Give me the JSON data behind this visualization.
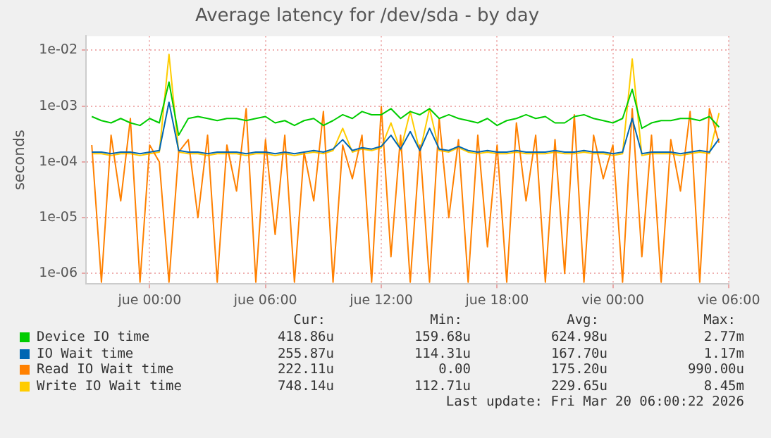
{
  "chart_data": {
    "type": "line",
    "title": "Average latency for /dev/sda - by day",
    "ylabel": "seconds",
    "x": [
      "2026-03-18T21:00",
      "2026-03-18T21:30",
      "2026-03-18T22:00",
      "2026-03-18T22:30",
      "2026-03-18T23:00",
      "2026-03-18T23:30",
      "2026-03-19T00:00",
      "2026-03-19T00:30",
      "2026-03-19T01:00",
      "2026-03-19T01:30",
      "2026-03-19T02:00",
      "2026-03-19T02:30",
      "2026-03-19T03:00",
      "2026-03-19T03:30",
      "2026-03-19T04:00",
      "2026-03-19T04:30",
      "2026-03-19T05:00",
      "2026-03-19T05:30",
      "2026-03-19T06:00",
      "2026-03-19T06:30",
      "2026-03-19T07:00",
      "2026-03-19T07:30",
      "2026-03-19T08:00",
      "2026-03-19T08:30",
      "2026-03-19T09:00",
      "2026-03-19T09:30",
      "2026-03-19T10:00",
      "2026-03-19T10:30",
      "2026-03-19T11:00",
      "2026-03-19T11:30",
      "2026-03-19T12:00",
      "2026-03-19T12:30",
      "2026-03-19T13:00",
      "2026-03-19T13:30",
      "2026-03-19T14:00",
      "2026-03-19T14:30",
      "2026-03-19T15:00",
      "2026-03-19T15:30",
      "2026-03-19T16:00",
      "2026-03-19T16:30",
      "2026-03-19T17:00",
      "2026-03-19T17:30",
      "2026-03-19T18:00",
      "2026-03-19T18:30",
      "2026-03-19T19:00",
      "2026-03-19T19:30",
      "2026-03-19T20:00",
      "2026-03-19T20:30",
      "2026-03-19T21:00",
      "2026-03-19T21:30",
      "2026-03-19T22:00",
      "2026-03-19T22:30",
      "2026-03-19T23:00",
      "2026-03-19T23:30",
      "2026-03-20T00:00",
      "2026-03-20T00:30",
      "2026-03-20T01:00",
      "2026-03-20T01:30",
      "2026-03-20T02:00",
      "2026-03-20T02:30",
      "2026-03-20T03:00",
      "2026-03-20T03:30",
      "2026-03-20T04:00",
      "2026-03-20T04:30",
      "2026-03-20T05:00",
      "2026-03-20T05:30"
    ],
    "series": [
      {
        "name": "Device IO time",
        "color": "#00cc00",
        "values": [
          0.00065,
          0.00055,
          0.0005,
          0.0006,
          0.0005,
          0.00045,
          0.0006,
          0.0005,
          0.0027,
          0.0003,
          0.0006,
          0.00065,
          0.0006,
          0.00055,
          0.0006,
          0.0006,
          0.00055,
          0.0006,
          0.00065,
          0.0005,
          0.00055,
          0.00045,
          0.00055,
          0.0006,
          0.00045,
          0.00055,
          0.0007,
          0.0006,
          0.0008,
          0.0007,
          0.0007,
          0.0009,
          0.0006,
          0.0008,
          0.0007,
          0.0009,
          0.0006,
          0.0007,
          0.0006,
          0.00055,
          0.0005,
          0.0006,
          0.00045,
          0.00055,
          0.0006,
          0.0007,
          0.0006,
          0.00065,
          0.0005,
          0.0005,
          0.00065,
          0.0007,
          0.0006,
          0.00055,
          0.0005,
          0.0006,
          0.002,
          0.0004,
          0.0005,
          0.00055,
          0.00055,
          0.0006,
          0.0006,
          0.00055,
          0.00065,
          0.00042
        ]
      },
      {
        "name": "IO Wait time",
        "color": "#0066b3",
        "values": [
          0.00015,
          0.00015,
          0.00014,
          0.00015,
          0.00015,
          0.00014,
          0.00015,
          0.00016,
          0.00117,
          0.00016,
          0.00015,
          0.00015,
          0.00014,
          0.00015,
          0.00015,
          0.00015,
          0.00014,
          0.00015,
          0.00015,
          0.00014,
          0.00015,
          0.00014,
          0.00015,
          0.00016,
          0.00015,
          0.00017,
          0.00025,
          0.00016,
          0.00018,
          0.00017,
          0.00019,
          0.0003,
          0.00017,
          0.00035,
          0.00016,
          0.0004,
          0.00017,
          0.00016,
          0.00019,
          0.00016,
          0.00015,
          0.00016,
          0.00015,
          0.00015,
          0.00016,
          0.00015,
          0.00015,
          0.00015,
          0.00016,
          0.00015,
          0.00015,
          0.00016,
          0.00015,
          0.00015,
          0.00014,
          0.00015,
          0.0006,
          0.00014,
          0.00015,
          0.00015,
          0.00015,
          0.00014,
          0.00015,
          0.00016,
          0.00015,
          0.00026
        ]
      },
      {
        "name": "Read IO Wait time",
        "color": "#ff8000",
        "values": [
          0.0002,
          7e-07,
          0.0003,
          2e-05,
          0.0006,
          7e-07,
          0.0002,
          0.0001,
          7e-07,
          0.00015,
          0.00025,
          1e-05,
          0.0003,
          7e-07,
          0.0002,
          3e-05,
          0.0009,
          7e-07,
          0.00025,
          5e-06,
          0.0003,
          7e-07,
          0.00015,
          2e-05,
          0.0008,
          7e-07,
          0.0002,
          5e-05,
          0.0003,
          7e-07,
          0.00099,
          2e-06,
          0.0003,
          7e-07,
          0.0002,
          7e-07,
          0.0006,
          1e-05,
          0.00025,
          7e-07,
          0.0003,
          3e-06,
          0.0002,
          7e-07,
          0.0005,
          2e-05,
          0.0003,
          7e-07,
          0.00025,
          1e-06,
          0.0007,
          7e-07,
          0.0003,
          5e-05,
          0.0002,
          7e-07,
          0.0009,
          2e-06,
          0.0003,
          7e-07,
          0.00025,
          3e-05,
          0.0008,
          7e-07,
          0.0009,
          0.00022
        ]
      },
      {
        "name": "Write IO Wait time",
        "color": "#ffcc00",
        "values": [
          0.00014,
          0.00014,
          0.00013,
          0.00014,
          0.00014,
          0.00013,
          0.00014,
          0.00015,
          0.00845,
          0.00015,
          0.00014,
          0.00014,
          0.00013,
          0.00014,
          0.00014,
          0.00014,
          0.00013,
          0.00014,
          0.00014,
          0.00013,
          0.00014,
          0.00013,
          0.00014,
          0.00015,
          0.00014,
          0.00016,
          0.0004,
          0.00015,
          0.00017,
          0.00016,
          0.00018,
          0.0005,
          0.00016,
          0.0008,
          0.00015,
          0.0009,
          0.00016,
          0.00015,
          0.00018,
          0.00015,
          0.00014,
          0.00015,
          0.00014,
          0.00014,
          0.00015,
          0.00014,
          0.00014,
          0.00014,
          0.00015,
          0.00014,
          0.00014,
          0.00015,
          0.00014,
          0.00014,
          0.00013,
          0.00014,
          0.007,
          0.00013,
          0.00014,
          0.00014,
          0.00014,
          0.00013,
          0.00014,
          0.00015,
          0.00014,
          0.00075
        ]
      }
    ],
    "log": "y",
    "xlim": [
      "2026-03-18T20:42",
      "2026-03-20T06:00"
    ],
    "xticks": [
      {
        "value": "2026-03-19T00:00",
        "label": "jue 00:00"
      },
      {
        "value": "2026-03-19T06:00",
        "label": "jue 06:00"
      },
      {
        "value": "2026-03-19T12:00",
        "label": "jue 12:00"
      },
      {
        "value": "2026-03-19T18:00",
        "label": "jue 18:00"
      },
      {
        "value": "2026-03-20T00:00",
        "label": "vie 00:00"
      },
      {
        "value": "2026-03-20T06:00",
        "label": "vie 06:00"
      }
    ],
    "ylim": [
      6.5e-07,
      0.018
    ],
    "yticks": [
      {
        "value": 0.01,
        "label": "1e-02"
      },
      {
        "value": 0.001,
        "label": "1e-03"
      },
      {
        "value": 0.0001,
        "label": "1e-04"
      },
      {
        "value": 1e-05,
        "label": "1e-05"
      },
      {
        "value": 1e-06,
        "label": "1e-06"
      }
    ],
    "grid": true,
    "legend": "bottom",
    "annotations": [
      "Cur:",
      "Min:",
      "Avg:",
      "Max:",
      "418.86u",
      "159.68u",
      "624.98u",
      "2.77m",
      "255.87u",
      "114.31u",
      "167.70u",
      "1.17m",
      "222.11u",
      "0.00",
      "175.20u",
      "990.00u",
      "748.14u",
      "112.71u",
      "229.65u",
      "8.45m",
      "Last update: Fri Mar 20 06:00:22 2026"
    ]
  }
}
